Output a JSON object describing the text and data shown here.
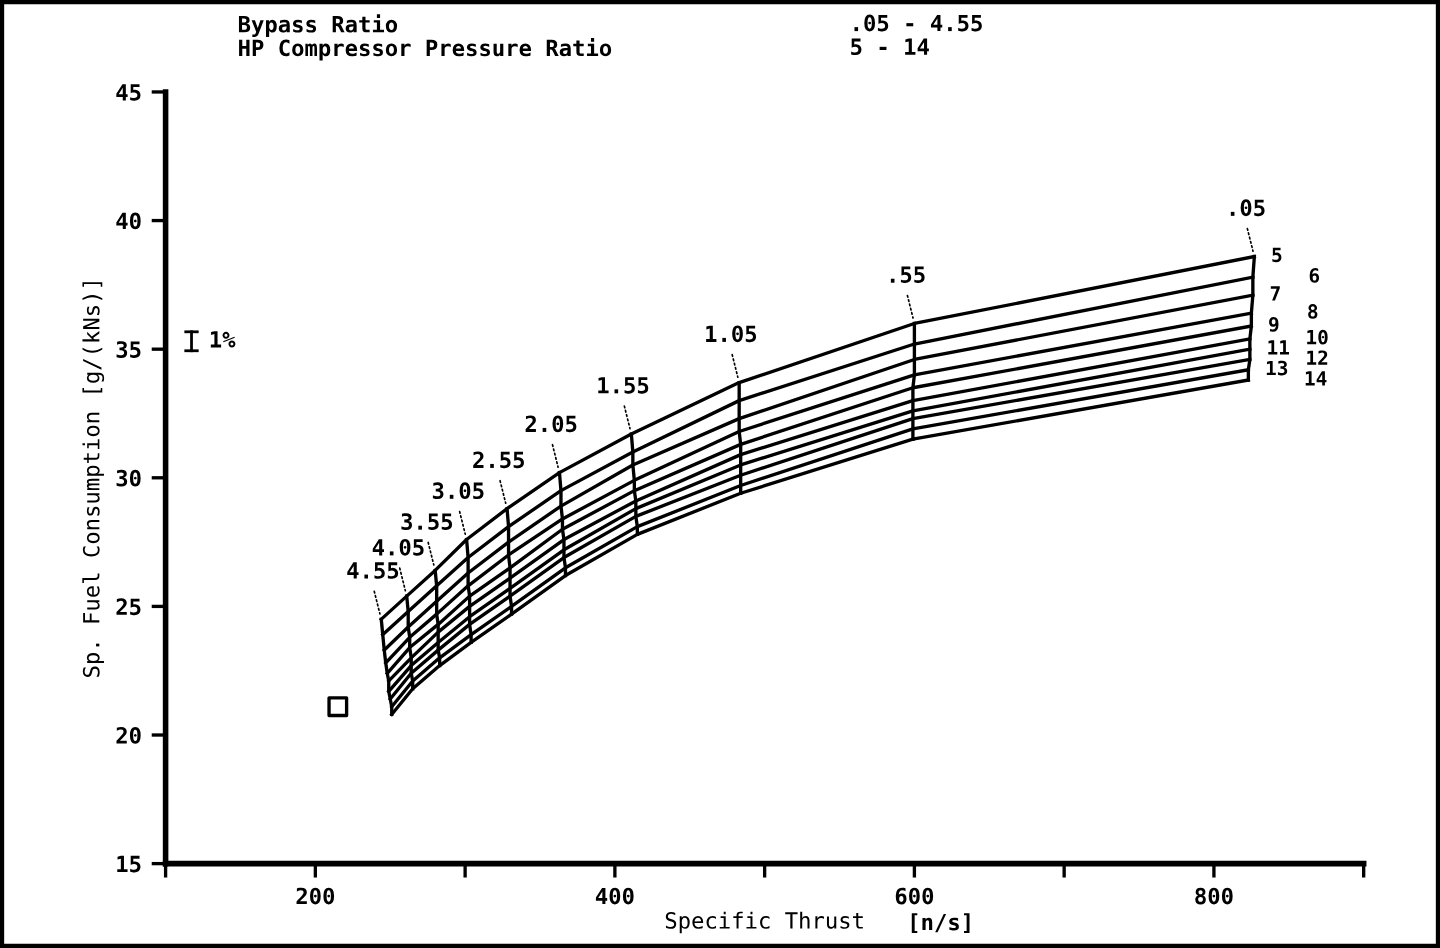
{
  "chart_data": {
    "type": "line",
    "xlabel": "Specific Thrust",
    "ylabel": "Sp. Fuel Consumption [g/(kNs)]",
    "annotations": [
      "Bypass Ratio",
      ".05 - 4.55",
      "HP Compressor Pressure Ratio",
      "5 - 14",
      "[n/s]",
      "1%"
    ],
    "xlim": [
      100,
      900
    ],
    "ylim": [
      15,
      45
    ],
    "xticks": [
      {
        "value": 100,
        "label": null
      },
      200,
      {
        "value": 300,
        "label": null
      },
      400,
      {
        "value": 500,
        "label": null
      },
      600,
      {
        "value": 700,
        "label": null
      },
      800,
      {
        "value": 900,
        "label": null
      }
    ],
    "yticks": [
      15,
      20,
      25,
      30,
      35,
      40,
      45
    ],
    "grid": false,
    "legend": false,
    "marker": "none",
    "line_style": "solid",
    "series": [
      {
        "name": "5",
        "color": "#000000",
        "x": [
          827,
          600,
          483,
          411,
          363,
          328,
          301,
          280,
          261,
          244
        ],
        "values": [
          38.6,
          36.0,
          33.7,
          31.7,
          30.2,
          28.8,
          27.6,
          26.4,
          25.4,
          24.5
        ]
      },
      {
        "name": "6",
        "color": "#000000",
        "x": [
          826,
          600,
          483,
          412,
          364,
          329,
          302,
          281,
          262,
          245
        ],
        "values": [
          37.8,
          35.2,
          33.0,
          31.0,
          29.5,
          28.1,
          26.9,
          25.8,
          24.8,
          23.9
        ]
      },
      {
        "name": "7",
        "color": "#000000",
        "x": [
          826,
          600,
          483,
          412,
          364,
          329,
          302,
          281,
          262,
          246
        ],
        "values": [
          37.1,
          34.6,
          32.3,
          30.5,
          28.9,
          27.5,
          26.3,
          25.2,
          24.2,
          23.3
        ]
      },
      {
        "name": "8",
        "color": "#000000",
        "x": [
          825,
          600,
          483,
          413,
          365,
          329,
          302,
          281,
          263,
          247
        ],
        "values": [
          36.4,
          34.0,
          31.8,
          29.9,
          28.4,
          27.0,
          25.8,
          24.7,
          23.8,
          22.8
        ]
      },
      {
        "name": "9",
        "color": "#000000",
        "x": [
          825,
          599,
          484,
          413,
          365,
          330,
          303,
          282,
          263,
          248
        ],
        "values": [
          35.9,
          33.5,
          31.3,
          29.5,
          28.0,
          26.5,
          25.4,
          24.3,
          23.4,
          22.4
        ]
      },
      {
        "name": "10",
        "color": "#000000",
        "x": [
          824,
          599,
          484,
          414,
          366,
          330,
          303,
          282,
          264,
          249
        ],
        "values": [
          35.4,
          33.0,
          30.9,
          29.1,
          27.6,
          26.1,
          25.0,
          24.0,
          23.0,
          22.1
        ]
      },
      {
        "name": "11",
        "color": "#000000",
        "x": [
          824,
          599,
          484,
          414,
          366,
          330,
          303,
          282,
          264,
          249
        ],
        "values": [
          35.0,
          32.6,
          30.5,
          28.8,
          27.2,
          25.7,
          24.6,
          23.6,
          22.7,
          21.7
        ]
      },
      {
        "name": "12",
        "color": "#000000",
        "x": [
          824,
          599,
          484,
          414,
          366,
          330,
          303,
          282,
          264,
          250
        ],
        "values": [
          34.6,
          32.3,
          30.1,
          28.5,
          26.9,
          25.4,
          24.3,
          23.3,
          22.4,
          21.4
        ]
      },
      {
        "name": "13",
        "color": "#000000",
        "x": [
          823,
          599,
          484,
          415,
          367,
          331,
          304,
          283,
          265,
          251
        ],
        "values": [
          34.2,
          31.9,
          29.7,
          28.1,
          26.5,
          25.0,
          23.9,
          23.0,
          22.1,
          21.1
        ]
      },
      {
        "name": "14",
        "color": "#000000",
        "x": [
          823,
          599,
          484,
          415,
          367,
          331,
          304,
          283,
          265,
          251
        ],
        "values": [
          33.8,
          31.5,
          29.4,
          27.8,
          26.2,
          24.7,
          23.6,
          22.7,
          21.8,
          20.8
        ]
      },
      {
        "name": ".05",
        "color": "#000000",
        "x": [
          827,
          826,
          826,
          825,
          825,
          824,
          824,
          824,
          823,
          823
        ],
        "values": [
          38.6,
          37.8,
          37.1,
          36.4,
          35.9,
          35.4,
          35.0,
          34.6,
          34.2,
          33.8
        ]
      },
      {
        "name": ".55",
        "color": "#000000",
        "x": [
          600,
          600,
          600,
          600,
          599,
          599,
          599,
          599,
          599,
          599
        ],
        "values": [
          36.0,
          35.2,
          34.6,
          34.0,
          33.5,
          33.0,
          32.6,
          32.3,
          31.9,
          31.5
        ]
      },
      {
        "name": "1.05",
        "color": "#000000",
        "x": [
          483,
          483,
          483,
          483,
          484,
          484,
          484,
          484,
          484,
          484
        ],
        "values": [
          33.7,
          33.0,
          32.3,
          31.8,
          31.3,
          30.9,
          30.5,
          30.1,
          29.7,
          29.4
        ]
      },
      {
        "name": "1.55",
        "color": "#000000",
        "x": [
          411,
          412,
          412,
          413,
          413,
          414,
          414,
          414,
          415,
          415
        ],
        "values": [
          31.7,
          31.0,
          30.5,
          29.9,
          29.5,
          29.1,
          28.8,
          28.5,
          28.1,
          27.8
        ]
      },
      {
        "name": "2.05",
        "color": "#000000",
        "x": [
          363,
          364,
          364,
          365,
          365,
          366,
          366,
          366,
          367,
          367
        ],
        "values": [
          30.2,
          29.5,
          28.9,
          28.4,
          28.0,
          27.6,
          27.2,
          26.9,
          26.5,
          26.2
        ]
      },
      {
        "name": "2.55",
        "color": "#000000",
        "x": [
          328,
          329,
          329,
          329,
          330,
          330,
          330,
          330,
          331,
          331
        ],
        "values": [
          28.8,
          28.1,
          27.5,
          27.0,
          26.5,
          26.1,
          25.7,
          25.4,
          25.0,
          24.7
        ]
      },
      {
        "name": "3.05",
        "color": "#000000",
        "x": [
          301,
          302,
          302,
          302,
          303,
          303,
          303,
          303,
          304,
          304
        ],
        "values": [
          27.6,
          26.9,
          26.3,
          25.8,
          25.4,
          25.0,
          24.6,
          24.3,
          23.9,
          23.6
        ]
      },
      {
        "name": "3.55",
        "color": "#000000",
        "x": [
          280,
          281,
          281,
          281,
          282,
          282,
          282,
          282,
          283,
          283
        ],
        "values": [
          26.4,
          25.8,
          25.2,
          24.7,
          24.3,
          24.0,
          23.6,
          23.3,
          23.0,
          22.7
        ]
      },
      {
        "name": "4.05",
        "color": "#000000",
        "x": [
          261,
          262,
          262,
          263,
          263,
          264,
          264,
          264,
          265,
          265
        ],
        "values": [
          25.4,
          24.8,
          24.2,
          23.8,
          23.4,
          23.0,
          22.7,
          22.4,
          22.1,
          21.8
        ]
      },
      {
        "name": "4.55",
        "color": "#000000",
        "x": [
          244,
          245,
          246,
          247,
          248,
          249,
          249,
          250,
          251,
          251
        ],
        "values": [
          24.5,
          23.9,
          23.3,
          22.8,
          22.4,
          22.1,
          21.7,
          21.4,
          21.1,
          20.8
        ]
      },
      {
        "type": "scatter",
        "marker": "square",
        "color": "#000000",
        "x": [
          215
        ],
        "values": [
          21.1
        ]
      }
    ]
  }
}
